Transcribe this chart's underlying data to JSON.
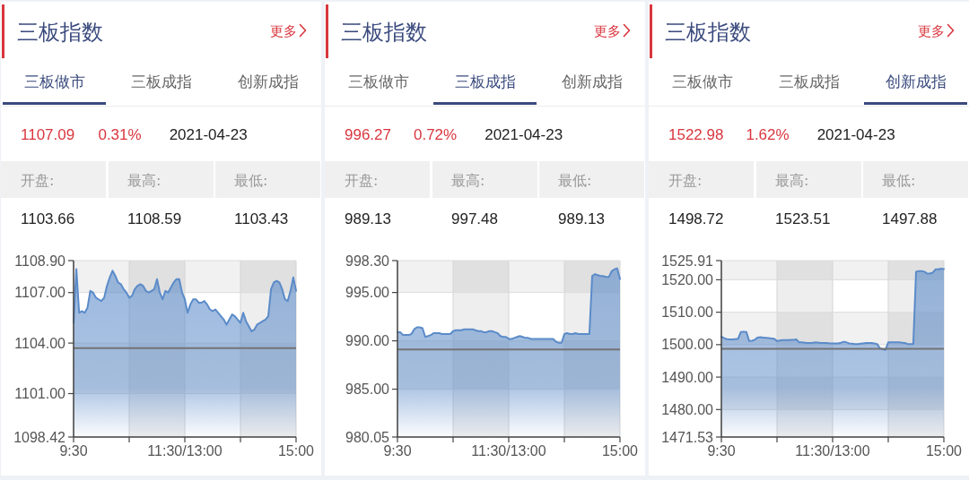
{
  "chart_data": [
    {
      "type": "area",
      "title": "三板指数",
      "annotations": [
        "更多",
        "三板做市",
        "三板成指",
        "创新成指",
        "1107.09",
        "0.31%",
        "2021-04-23",
        "开盘:",
        "最高:",
        "最低:",
        "1103.66",
        "1108.59",
        "1103.43"
      ],
      "categories": [
        "9:30",
        null,
        null,
        null,
        null,
        null,
        null,
        null,
        null,
        null,
        null,
        null,
        null,
        null,
        null,
        null,
        null,
        null,
        null,
        null,
        null,
        null,
        null,
        null,
        null,
        null,
        null,
        null,
        null,
        null,
        null,
        null,
        null,
        null,
        null,
        null,
        null,
        null,
        null,
        null,
        "11:30/13:00",
        null,
        null,
        null,
        null,
        null,
        null,
        null,
        null,
        null,
        null,
        null,
        null,
        null,
        null,
        null,
        null,
        null,
        null,
        null,
        null,
        null,
        null,
        null,
        null,
        null,
        null,
        null,
        null,
        null,
        null,
        null,
        null,
        null,
        null,
        null,
        null,
        null,
        null,
        null,
        "15:00"
      ],
      "values": [
        1105.2,
        1108.4,
        1105.8,
        1105.9,
        1105.8,
        1106.1,
        1107.1,
        1107.0,
        1106.7,
        1106.6,
        1106.5,
        1106.7,
        1107.4,
        1107.9,
        1108.3,
        1108.0,
        1107.6,
        1107.5,
        1107.2,
        1107.0,
        1106.7,
        1106.8,
        1107.2,
        1107.4,
        1107.5,
        1107.4,
        1107.1,
        1107.0,
        1107.1,
        1107.2,
        1107.8,
        1107.0,
        1106.6,
        1107.1,
        1107.0,
        1107.3,
        1107.6,
        1107.8,
        1107.8,
        1107.0,
        1106.6,
        1105.8,
        1106.3,
        1106.6,
        1106.6,
        1106.4,
        1106.4,
        1106.5,
        1106.3,
        1106.0,
        1105.9,
        1106.0,
        1105.8,
        1105.6,
        1105.4,
        1105.1,
        1105.4,
        1105.7,
        1105.6,
        1105.4,
        1105.2,
        1105.8,
        1105.3,
        1105.0,
        1104.7,
        1104.8,
        1105.1,
        1105.2,
        1105.3,
        1105.4,
        1105.6,
        1107.2,
        1107.6,
        1107.7,
        1107.6,
        1107.2,
        1106.6,
        1106.5,
        1107.1,
        1107.9,
        1107.1
      ],
      "color": "#5b8bc9",
      "ylim": [
        1098.42,
        1108.9
      ],
      "yticks": [
        1098.42,
        {
          "value": 1101,
          "label": "1101.00"
        },
        {
          "value": 1104,
          "label": "1104.00"
        },
        {
          "value": 1107,
          "label": "1107.00"
        },
        {
          "value": 1108.9,
          "label": "1108.90"
        }
      ],
      "grid": true,
      "ref_lines": [
        {
          "axis": "y",
          "value": 1103.7,
          "color": "#737373"
        }
      ]
    },
    {
      "type": "area",
      "title": "三板指数",
      "annotations": [
        "更多",
        "三板做市",
        "三板成指",
        "创新成指",
        "996.27",
        "0.72%",
        "2021-04-23",
        "开盘:",
        "最高:",
        "最低:",
        "989.13",
        "997.48",
        "989.13"
      ],
      "categories": [
        "9:30",
        null,
        null,
        null,
        null,
        null,
        null,
        null,
        null,
        null,
        null,
        null,
        null,
        null,
        null,
        null,
        null,
        null,
        null,
        null,
        null,
        null,
        null,
        null,
        null,
        null,
        null,
        null,
        null,
        null,
        null,
        null,
        null,
        null,
        null,
        null,
        null,
        null,
        null,
        null,
        "11:30/13:00",
        null,
        null,
        null,
        null,
        null,
        null,
        null,
        null,
        null,
        null,
        null,
        null,
        null,
        null,
        null,
        null,
        null,
        null,
        null,
        null,
        null,
        null,
        null,
        null,
        null,
        null,
        null,
        null,
        null,
        null,
        null,
        null,
        null,
        null,
        null,
        null,
        null,
        null,
        null,
        "15:00"
      ],
      "values": [
        990.9,
        990.9,
        990.6,
        990.6,
        990.6,
        990.7,
        991.2,
        991.4,
        991.4,
        991.3,
        990.4,
        990.5,
        990.6,
        990.8,
        990.8,
        990.8,
        990.7,
        990.7,
        990.7,
        990.7,
        991.0,
        991.1,
        991.1,
        991.1,
        991.2,
        991.2,
        991.2,
        991.2,
        991.1,
        991.0,
        991.0,
        990.9,
        990.9,
        991.0,
        991.0,
        990.9,
        990.8,
        990.5,
        990.4,
        990.4,
        990.2,
        990.2,
        990.3,
        990.4,
        990.5,
        990.4,
        990.3,
        990.3,
        990.2,
        990.2,
        990.2,
        990.2,
        990.2,
        990.2,
        990.2,
        990.2,
        990.2,
        989.9,
        989.8,
        989.8,
        990.7,
        990.8,
        990.7,
        990.7,
        990.8,
        990.7,
        990.7,
        990.7,
        990.7,
        990.7,
        996.7,
        996.9,
        996.8,
        996.7,
        996.7,
        996.6,
        996.6,
        997.2,
        997.4,
        997.5,
        996.4
      ],
      "color": "#5b8bc9",
      "ylim": [
        980.05,
        998.3
      ],
      "yticks": [
        980.05,
        {
          "value": 985,
          "label": "985.00"
        },
        {
          "value": 990,
          "label": "990.00"
        },
        {
          "value": 995,
          "label": "995.00"
        },
        {
          "value": 998.3,
          "label": "998.30"
        }
      ],
      "grid": true,
      "ref_lines": [
        {
          "axis": "y",
          "value": 989.1,
          "color": "#737373"
        }
      ]
    },
    {
      "type": "area",
      "title": "三板指数",
      "annotations": [
        "更多",
        "三板做市",
        "三板成指",
        "创新成指",
        "1522.98",
        "1.62%",
        "2021-04-23",
        "开盘:",
        "最高:",
        "最低:",
        "1498.72",
        "1523.51",
        "1497.88"
      ],
      "categories": [
        "9:30",
        null,
        null,
        null,
        null,
        null,
        null,
        null,
        null,
        null,
        null,
        null,
        null,
        null,
        null,
        null,
        null,
        null,
        null,
        null,
        null,
        null,
        null,
        null,
        null,
        null,
        null,
        null,
        null,
        null,
        null,
        null,
        null,
        null,
        null,
        null,
        null,
        null,
        null,
        null,
        "11:30/13:00",
        null,
        null,
        null,
        null,
        null,
        null,
        null,
        null,
        null,
        null,
        null,
        null,
        null,
        null,
        null,
        null,
        null,
        null,
        null,
        null,
        null,
        null,
        null,
        null,
        null,
        null,
        null,
        null,
        null,
        null,
        null,
        null,
        null,
        null,
        null,
        null,
        null,
        null,
        null,
        "15:00"
      ],
      "values": [
        1502.5,
        1502.0,
        1501.7,
        1501.6,
        1501.6,
        1501.7,
        1501.8,
        1503.9,
        1504.0,
        1503.9,
        1501.1,
        1501.2,
        1501.5,
        1502.2,
        1502.3,
        1502.2,
        1502.1,
        1502.0,
        1501.9,
        1501.8,
        1501.1,
        1501.3,
        1501.4,
        1501.4,
        1501.4,
        1501.5,
        1501.5,
        1501.6,
        1500.7,
        1500.7,
        1500.6,
        1500.5,
        1500.5,
        1500.6,
        1500.7,
        1500.6,
        1500.5,
        1500.5,
        1500.5,
        1500.4,
        1500.4,
        1500.4,
        1500.4,
        1500.6,
        1500.9,
        1500.7,
        1500.4,
        1500.3,
        1500.2,
        1500.2,
        1500.3,
        1500.4,
        1500.5,
        1500.5,
        1500.5,
        1500.4,
        1500.2,
        1498.9,
        1498.6,
        1498.4,
        1500.7,
        1500.7,
        1500.7,
        1500.7,
        1500.7,
        1500.6,
        1500.5,
        1500.2,
        1500.2,
        1500.2,
        1522.5,
        1522.7,
        1522.7,
        1522.5,
        1521.9,
        1521.9,
        1522.2,
        1523.2,
        1523.2,
        1523.4,
        1523.3
      ],
      "color": "#5b8bc9",
      "ylim": [
        1471.53,
        1525.91
      ],
      "yticks": [
        1471.53,
        {
          "value": 1480,
          "label": "1480.00"
        },
        {
          "value": 1490,
          "label": "1490.00"
        },
        {
          "value": 1500,
          "label": "1500.00"
        },
        {
          "value": 1510,
          "label": "1510.00"
        },
        {
          "value": 1520,
          "label": "1520.00"
        },
        1525.91
      ],
      "grid": true,
      "ref_lines": [
        {
          "axis": "y",
          "value": 1498.7,
          "color": "#737373"
        }
      ]
    }
  ]
}
